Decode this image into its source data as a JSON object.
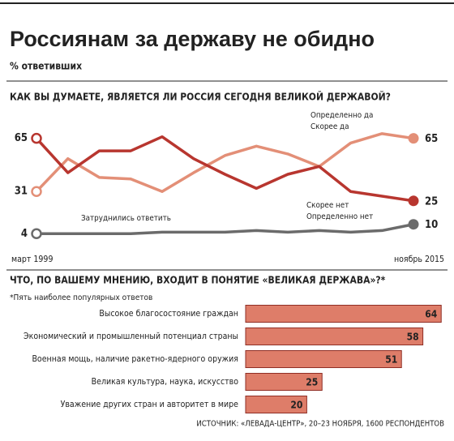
{
  "header": {
    "title": "Россиянам за державу не обидно",
    "subtitle": "% ответивших"
  },
  "chart_data": [
    {
      "type": "line",
      "title": "КАК ВЫ ДУМАЕТЕ, ЯВЛЯЕТСЯ ЛИ РОССИЯ СЕГОДНЯ ВЕЛИКОЙ ДЕРЖАВОЙ?",
      "categories": [
        "март 1999",
        null,
        null,
        null,
        null,
        null,
        null,
        null,
        null,
        null,
        null,
        null,
        "ноябрь 2015"
      ],
      "ylim": [
        0,
        70
      ],
      "series": [
        {
          "name": "Определенно да\nСкорее да",
          "color": "#e38f77",
          "values": [
            31,
            52,
            40,
            39,
            31,
            43,
            54,
            60,
            55,
            47,
            62,
            68,
            65
          ]
        },
        {
          "name": "Скорее нет\nОпределенно нет",
          "color": "#b8362f",
          "values": [
            65,
            43,
            57,
            57,
            66,
            52,
            42,
            33,
            42,
            47,
            31,
            28,
            25
          ]
        },
        {
          "name": "Затруднились ответить",
          "color": "#6b6b6b",
          "values": [
            4,
            4,
            4,
            4,
            5,
            5,
            5,
            6,
            5,
            6,
            5,
            6,
            10
          ]
        }
      ]
    },
    {
      "type": "barh",
      "title": "ЧТО, ПО ВАШЕМУ МНЕНИЮ, ВХОДИТ В ПОНЯТИЕ «ВЕЛИКАЯ ДЕРЖАВА»?*",
      "note": "*Пять наиболее популярных ответов",
      "categories": [
        "Высокое благосостояние граждан",
        "Экономический и промышленный потенциал страны",
        "Военная мощь, наличие ракетно-ядерного оружия",
        "Великая культура, наука, искусство",
        "Уважение других стран и авторитет в мире"
      ],
      "values": [
        64,
        58,
        51,
        25,
        20
      ],
      "color": "#de7d69",
      "xlim": [
        0,
        65
      ]
    }
  ],
  "source": "ИСТОЧНИК: «ЛЕВАДА-ЦЕНТР», 20–23 НОЯБРЯ, 1600 РЕСПОНДЕНТОВ"
}
